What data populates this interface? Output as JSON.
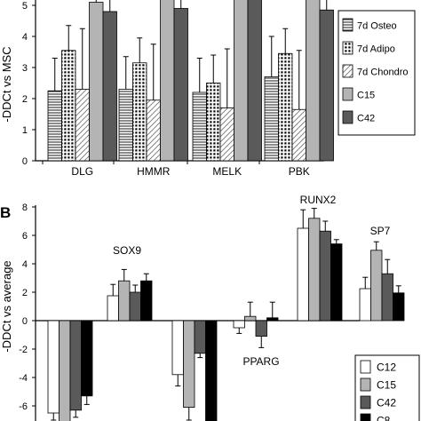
{
  "chart_data": [
    {
      "type": "bar",
      "panel_label": "",
      "ylabel": "-DDCt vs MSC",
      "ylim": [
        0,
        6
      ],
      "yticks": [
        0,
        1,
        2,
        3,
        4,
        5
      ],
      "categories": [
        "DLG",
        "HMMR",
        "MELK",
        "PBK"
      ],
      "legend_position": "right",
      "series": [
        {
          "name": "7d Osteo",
          "fill": "hlines",
          "values": [
            2.25,
            2.3,
            2.2,
            2.7
          ],
          "errors": [
            1.05,
            1.05,
            1.1,
            1.3
          ]
        },
        {
          "name": "7d Adipo",
          "fill": "dots",
          "values": [
            3.55,
            3.15,
            2.5,
            3.45
          ],
          "errors": [
            0.8,
            0.8,
            0.9,
            0.8
          ]
        },
        {
          "name": "7d Chondro",
          "fill": "diag",
          "values": [
            2.3,
            1.95,
            1.7,
            1.65
          ],
          "errors": [
            1.95,
            1.8,
            1.9,
            1.9
          ]
        },
        {
          "name": "C15",
          "fill": "#b4b4b4",
          "values": [
            5.1,
            5.25,
            5.35,
            5.2
          ],
          "errors": [
            0.5,
            0.75,
            0.6,
            0.8
          ]
        },
        {
          "name": "C42",
          "fill": "#5a5a5a",
          "values": [
            4.8,
            4.9,
            5.3,
            4.85
          ],
          "errors": [
            0.6,
            0.9,
            0.55,
            0.6
          ]
        }
      ]
    },
    {
      "type": "bar",
      "panel_label": "B",
      "ylabel": "-DDCt vs average",
      "ylim": [
        -7,
        8
      ],
      "yticks": [
        -6,
        -4,
        -2,
        0,
        2,
        4,
        6,
        8
      ],
      "categories": [
        "",
        "SOX9",
        "",
        "PPARG",
        "RUNX2",
        "SP7"
      ],
      "legend_position": "bottom-right",
      "series": [
        {
          "name": "C12",
          "fill": "#ffffff",
          "values": [
            -6.5,
            1.75,
            -3.8,
            -0.5,
            6.5,
            2.25
          ],
          "errors": [
            0.5,
            0.8,
            0.8,
            0.4,
            1.3,
            0.8
          ]
        },
        {
          "name": "C15",
          "fill": "#b4b4b4",
          "values": [
            -7.4,
            2.8,
            -6.1,
            0.3,
            7.2,
            4.95
          ],
          "errors": [
            1.0,
            0.8,
            0.9,
            1.0,
            0.7,
            0.6
          ]
        },
        {
          "name": "C42",
          "fill": "#5a5a5a",
          "values": [
            -6.3,
            2.0,
            -2.3,
            -1.1,
            6.3,
            3.3
          ],
          "errors": [
            0.5,
            0.5,
            0.3,
            0.8,
            0.7,
            1.0
          ]
        },
        {
          "name": "C8",
          "fill": "#000000",
          "values": [
            -5.3,
            2.8,
            -7.8,
            0.2,
            5.4,
            1.95
          ],
          "errors": [
            0.6,
            0.5,
            0.5,
            1.1,
            0.3,
            0.5
          ]
        }
      ]
    }
  ]
}
